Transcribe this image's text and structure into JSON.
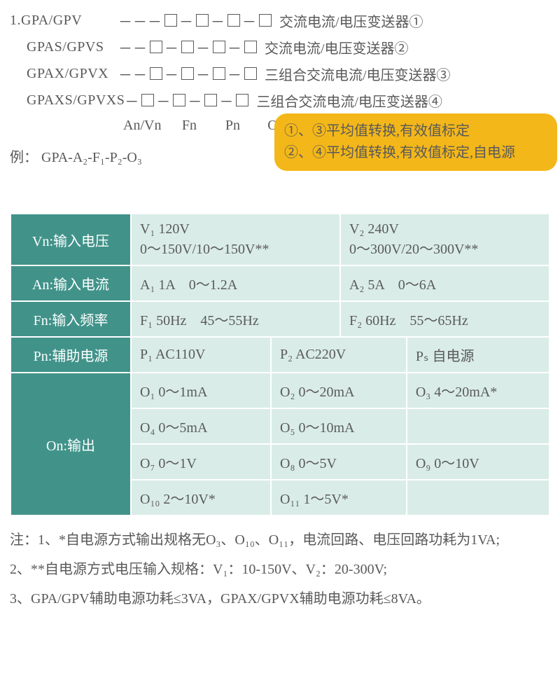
{
  "colors": {
    "text": "#595959",
    "header_bg": "#41938a",
    "header_fg": "#ffffff",
    "cell_bg": "#d9ece8",
    "note_bg": "#f3b719",
    "border": "#ffffff"
  },
  "models": [
    {
      "prefix": "1.",
      "code": "GPA/GPV",
      "desc": "交流电流/电压变送器①"
    },
    {
      "prefix": "",
      "code": "GPAS/GPVS",
      "desc": "交流电流/电压变送器②"
    },
    {
      "prefix": "",
      "code": "GPAX/GPVX",
      "desc": "三组合交流电流/电压变送器③"
    },
    {
      "prefix": "",
      "code": "GPAXS/GPVXS",
      "desc": "三组合交流电流/电压变送器④"
    }
  ],
  "param_labels": [
    "An/Vn",
    "Fn",
    "Pn",
    "On"
  ],
  "note_lines": [
    "①、③平均值转换,有效值标定",
    "②、④平均值转换,有效值标定,自电源"
  ],
  "example_label": "例：",
  "example_value": "GPA-A₂-F₁-P₂-O₃",
  "table": {
    "rows": [
      {
        "header": "Vn:输入电压",
        "cells_layout": "two",
        "cells": [
          "V₁ 120V\n0～150V/10～150V**",
          "V₂ 240V\n0～300V/20～300V**"
        ]
      },
      {
        "header": "An:输入电流",
        "cells_layout": "two",
        "cells": [
          "A₁ 1A　0～1.2A",
          "A₂ 5A　0～6A"
        ]
      },
      {
        "header": "Fn:输入频率",
        "cells_layout": "two",
        "cells": [
          "F₁ 50Hz　45～55Hz",
          "F₂ 60Hz　55～65Hz"
        ]
      },
      {
        "header": "Pn:辅助电源",
        "cells_layout": "three",
        "cells": [
          "P₁ AC110V",
          "P₂ AC220V",
          "Pₛ 自电源"
        ]
      },
      {
        "header": "On:输出",
        "rowspan": 4,
        "grid": [
          [
            "O₁ 0～1mA",
            "O₂ 0～20mA",
            "O₃ 4～20mA*"
          ],
          [
            "O₄ 0～5mA",
            "O₅ 0～10mA",
            ""
          ],
          [
            "O₇ 0～1V",
            "O₈ 0～5V",
            "O₉ 0～10V"
          ],
          [
            "O₁₀ 2～10V*",
            "O₁₁ 1～5V*",
            ""
          ]
        ]
      }
    ]
  },
  "footnotes": [
    "注：1、*自电源方式输出规格无O₃、O₁₀、O₁₁，电流回路、电压回路功耗为1VA;",
    "2、**自电源方式电压输入规格：V₁：10-150V、V₂：20-300V;",
    "3、GPA/GPV辅助电源功耗≤3VA，GPAX/GPVX辅助电源功耗≤8VA。"
  ]
}
